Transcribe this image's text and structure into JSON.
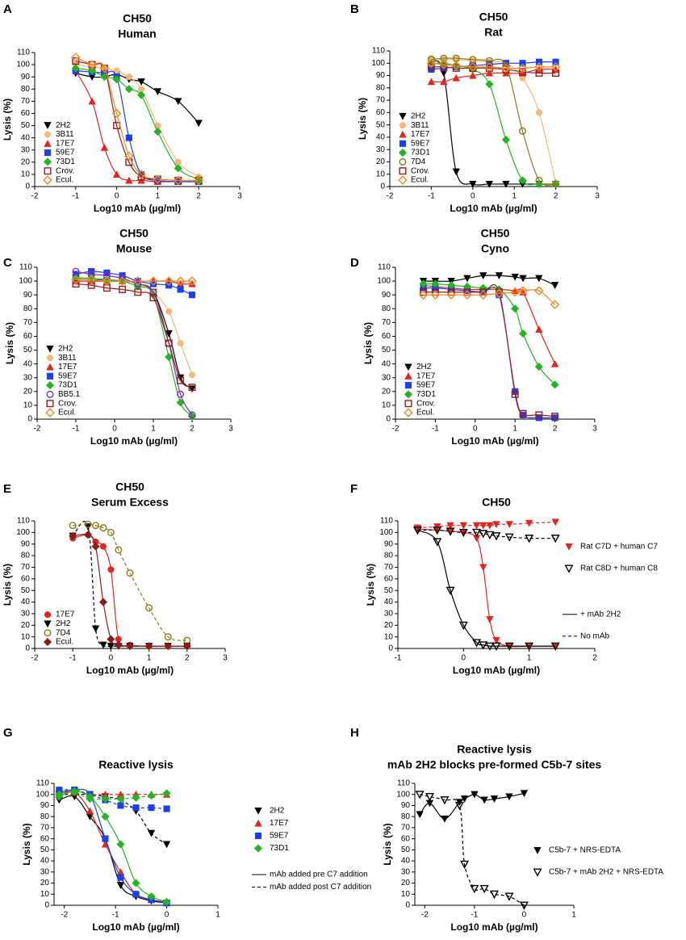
{
  "chart_data": [
    {
      "panel": "A",
      "type": "scatter",
      "title": "CH50",
      "subtitle": "Human",
      "x_label": "Log10 mAb (µg/ml)",
      "y_label": "Lysis (%)",
      "x": [
        -1,
        -0.6,
        -0.3,
        0,
        0.3,
        0.6,
        1,
        1.5,
        2
      ],
      "series": [
        {
          "name": "2H2",
          "color": "#000000",
          "marker": "triangle-down",
          "values": [
            93,
            90,
            90,
            92,
            88,
            86,
            78,
            70,
            52
          ]
        },
        {
          "name": "3B11",
          "color": "#f5b87a",
          "marker": "circle",
          "values": [
            100,
            98,
            97,
            95,
            90,
            80,
            50,
            20,
            8
          ]
        },
        {
          "name": "17E7",
          "color": "#e8231f",
          "marker": "triangle-up",
          "values": [
            95,
            70,
            32,
            10,
            5,
            5,
            4,
            4,
            4
          ]
        },
        {
          "name": "59E7",
          "color": "#1a3ff0",
          "marker": "square",
          "values": [
            95,
            94,
            93,
            90,
            40,
            10,
            5,
            4,
            4
          ]
        },
        {
          "name": "73D1",
          "color": "#22b522",
          "marker": "diamond",
          "values": [
            97,
            95,
            90,
            88,
            80,
            75,
            45,
            15,
            6
          ]
        },
        {
          "name": "Crov.",
          "color": "#9b1b1b",
          "marker": "square-open",
          "values": [
            103,
            100,
            97,
            50,
            20,
            8,
            6,
            5,
            5
          ]
        },
        {
          "name": "Ecul.",
          "color": "#f08a24",
          "marker": "diamond-open",
          "values": [
            106,
            100,
            97,
            60,
            25,
            10,
            6,
            5,
            5
          ]
        }
      ],
      "xlim": [
        -2,
        3
      ],
      "xticks": [
        -2,
        -1,
        0,
        1,
        2,
        3
      ],
      "ylim": [
        0,
        110
      ],
      "yticks": [
        0,
        10,
        20,
        30,
        40,
        50,
        60,
        70,
        80,
        90,
        100,
        110
      ],
      "legend": "lower-left"
    },
    {
      "panel": "B",
      "type": "scatter",
      "title": "CH50",
      "subtitle": "Rat",
      "x_label": "Log10 mAb (µg/ml)",
      "y_label": "Lysis (%)",
      "x": [
        -1,
        -0.7,
        -0.4,
        0,
        0.4,
        0.8,
        1.2,
        1.6,
        2
      ],
      "series": [
        {
          "name": "2H2",
          "color": "#000000",
          "marker": "triangle-down",
          "values": [
            102,
            92,
            12,
            2,
            2,
            2,
            2,
            2,
            2
          ]
        },
        {
          "name": "3B11",
          "color": "#f5b87a",
          "marker": "circle",
          "values": [
            104,
            103,
            103,
            102,
            101,
            100,
            88,
            60,
            3
          ]
        },
        {
          "name": "17E7",
          "color": "#e8231f",
          "marker": "triangle-up",
          "values": [
            85,
            85,
            88,
            90,
            92,
            92,
            92,
            95,
            95
          ]
        },
        {
          "name": "59E7",
          "color": "#1a3ff0",
          "marker": "square",
          "values": [
            95,
            96,
            97,
            98,
            99,
            100,
            100,
            101,
            101
          ]
        },
        {
          "name": "73D1",
          "color": "#22b522",
          "marker": "diamond",
          "values": [
            100,
            100,
            98,
            95,
            83,
            38,
            5,
            2,
            2
          ]
        },
        {
          "name": "7D4",
          "color": "#8c7a16",
          "marker": "circle-open",
          "values": [
            103,
            104,
            104,
            103,
            102,
            98,
            45,
            5,
            2
          ]
        },
        {
          "name": "Crov.",
          "color": "#9b1b1b",
          "marker": "square-open",
          "values": [
            97,
            97,
            96,
            96,
            96,
            95,
            93,
            92,
            92
          ]
        },
        {
          "name": "Ecul.",
          "color": "#f08a24",
          "marker": "diamond-open",
          "values": [
            100,
            99,
            98,
            97,
            97,
            96,
            96,
            97,
            97
          ]
        }
      ],
      "xlim": [
        -2,
        3
      ],
      "xticks": [
        -2,
        -1,
        0,
        1,
        2,
        3
      ],
      "ylim": [
        0,
        110
      ],
      "yticks": [
        0,
        10,
        20,
        30,
        40,
        50,
        60,
        70,
        80,
        90,
        100,
        110
      ],
      "legend": "lower-left"
    },
    {
      "panel": "C",
      "type": "scatter",
      "title": "CH50",
      "subtitle": "Mouse",
      "x_label": "Log10 mAb (µg/ml)",
      "y_label": "Lysis (%)",
      "x": [
        -1,
        -0.6,
        -0.2,
        0.2,
        0.6,
        1,
        1.4,
        1.7,
        2
      ],
      "series": [
        {
          "name": "2H2",
          "color": "#000000",
          "marker": "triangle-down",
          "values": [
            102,
            102,
            100,
            100,
            98,
            92,
            62,
            30,
            22
          ]
        },
        {
          "name": "3B11",
          "color": "#f5b87a",
          "marker": "circle",
          "values": [
            103,
            102,
            101,
            100,
            98,
            92,
            78,
            55,
            32
          ]
        },
        {
          "name": "17E7",
          "color": "#e8231f",
          "marker": "triangle-up",
          "values": [
            100,
            100,
            100,
            100,
            100,
            100,
            100,
            98,
            98
          ]
        },
        {
          "name": "59E7",
          "color": "#1a3ff0",
          "marker": "square",
          "values": [
            105,
            107,
            106,
            104,
            100,
            98,
            97,
            94,
            90
          ]
        },
        {
          "name": "73D1",
          "color": "#22b522",
          "marker": "diamond",
          "values": [
            102,
            102,
            101,
            100,
            96,
            90,
            45,
            12,
            2
          ]
        },
        {
          "name": "BB5.1",
          "color": "#7a2fb5",
          "marker": "circle-open",
          "values": [
            107,
            105,
            104,
            102,
            98,
            92,
            55,
            18,
            3
          ]
        },
        {
          "name": "Crov.",
          "color": "#9b1b1b",
          "marker": "square-open",
          "values": [
            98,
            97,
            95,
            94,
            92,
            88,
            55,
            28,
            23
          ]
        },
        {
          "name": "Ecul.",
          "color": "#f08a24",
          "marker": "diamond-open",
          "values": [
            101,
            101,
            100,
            100,
            100,
            100,
            100,
            100,
            100
          ]
        }
      ],
      "xlim": [
        -2,
        3
      ],
      "xticks": [
        -2,
        -1,
        0,
        1,
        2,
        3
      ],
      "ylim": [
        0,
        110
      ],
      "yticks": [
        0,
        10,
        20,
        30,
        40,
        50,
        60,
        70,
        80,
        90,
        100,
        110
      ],
      "legend": "lower-left"
    },
    {
      "panel": "D",
      "type": "scatter",
      "title": "CH50",
      "subtitle": "Cyno",
      "x_label": "Log10 mAb (µg/ml)",
      "y_label": "Lysis (%)",
      "x": [
        -1.3,
        -1,
        -0.6,
        -0.2,
        0.2,
        0.6,
        1,
        1.2,
        1.6,
        2
      ],
      "series": [
        {
          "name": "2H2",
          "color": "#000000",
          "marker": "triangle-down",
          "values": [
            100,
            100,
            100,
            102,
            104,
            104,
            103,
            102,
            102,
            97
          ]
        },
        {
          "name": "17E7",
          "color": "#e8231f",
          "marker": "triangle-up",
          "values": [
            97,
            96,
            95,
            94,
            94,
            94,
            93,
            92,
            65,
            40
          ]
        },
        {
          "name": "59E7",
          "color": "#1a3ff0",
          "marker": "square",
          "values": [
            95,
            95,
            94,
            93,
            92,
            90,
            20,
            3,
            1,
            1
          ]
        },
        {
          "name": "73D1",
          "color": "#22b522",
          "marker": "diamond",
          "values": [
            98,
            98,
            97,
            96,
            95,
            94,
            80,
            62,
            38,
            25
          ]
        },
        {
          "name": "Crov.",
          "color": "#9b1b1b",
          "marker": "square-open",
          "values": [
            92,
            92,
            92,
            92,
            92,
            92,
            18,
            4,
            3,
            2
          ]
        },
        {
          "name": "Ecul.",
          "color": "#f08a24",
          "marker": "diamond-open",
          "values": [
            90,
            90,
            90,
            90,
            90,
            91,
            92,
            93,
            93,
            83
          ]
        }
      ],
      "xlim": [
        -2,
        3
      ],
      "xticks": [
        -2,
        -1,
        0,
        1,
        2,
        3
      ],
      "ylim": [
        0,
        110
      ],
      "yticks": [
        0,
        10,
        20,
        30,
        40,
        50,
        60,
        70,
        80,
        90,
        100,
        110
      ],
      "legend": "lower-left"
    },
    {
      "panel": "E",
      "type": "scatter",
      "title": "CH50",
      "subtitle": "Serum Excess",
      "x_label": "Log10 mAb (µg/ml)",
      "y_label": "Lysis (%)",
      "x": [
        -1,
        -0.6,
        -0.4,
        -0.2,
        0,
        0.2,
        0.5,
        1,
        1.5,
        2
      ],
      "series": [
        {
          "name": "17E7",
          "color": "#e8231f",
          "marker": "circle",
          "values": [
            95,
            98,
            92,
            88,
            68,
            8,
            3,
            2,
            2,
            2
          ]
        },
        {
          "name": "2H2",
          "color": "#000000",
          "marker": "triangle-down",
          "dash": true,
          "values": [
            97,
            105,
            17,
            3,
            2,
            2,
            2,
            2,
            2,
            2
          ]
        },
        {
          "name": "7D4",
          "color": "#8c7a16",
          "marker": "circle-open",
          "dash": true,
          "values": [
            106,
            107,
            106,
            104,
            100,
            85,
            65,
            35,
            10,
            7
          ]
        },
        {
          "name": "Ecul.",
          "color": "#8b1a1a",
          "marker": "diamond",
          "values": [
            97,
            98,
            88,
            40,
            8,
            3,
            2,
            2,
            2,
            2
          ]
        }
      ],
      "xlim": [
        -2,
        3
      ],
      "xticks": [
        -2,
        -1,
        0,
        1,
        2,
        3
      ],
      "ylim": [
        0,
        110
      ],
      "yticks": [
        0,
        10,
        20,
        30,
        40,
        50,
        60,
        70,
        80,
        90,
        100,
        110
      ],
      "legend": "lower-left"
    },
    {
      "panel": "F",
      "type": "scatter",
      "title": "CH50",
      "x_label": "Log10 mAb (µg/ml)",
      "y_label": "Lysis (%)",
      "x": [
        -0.7,
        -0.4,
        -0.2,
        0,
        0.2,
        0.3,
        0.4,
        0.5,
        0.7,
        1,
        1.4
      ],
      "series": [
        {
          "name": "Rat C7D + human C7",
          "color": "#e8231f",
          "marker": "triangle-down",
          "values": [
            103,
            102,
            101,
            100,
            95,
            70,
            25,
            7,
            2,
            2,
            2
          ],
          "values_dashed": [
            104,
            105,
            106,
            106,
            106,
            106,
            106,
            107,
            107,
            108,
            109
          ]
        },
        {
          "name": "Rat C8D + human C8",
          "color": "#000000",
          "marker": "triangle-down-open",
          "values": [
            102,
            92,
            50,
            20,
            5,
            3,
            2,
            2,
            2,
            2,
            2
          ],
          "values_dashed": [
            102,
            102,
            101,
            100,
            100,
            99,
            98,
            97,
            96,
            95,
            95
          ]
        }
      ],
      "line_styles": [
        "+ mAb 2H2",
        "No mAb"
      ],
      "xlim": [
        -1,
        2
      ],
      "xticks": [
        -1,
        0,
        1,
        2
      ],
      "ylim": [
        0,
        110
      ],
      "yticks": [
        0,
        10,
        20,
        30,
        40,
        50,
        60,
        70,
        80,
        90,
        100,
        110
      ],
      "legend": "right"
    },
    {
      "panel": "G",
      "type": "scatter",
      "title": "Reactive lysis",
      "x_label": "Log10 mAb (µg/ml)",
      "y_label": "Lysis (%)",
      "x": [
        -2.1,
        -1.8,
        -1.5,
        -1.2,
        -0.9,
        -0.6,
        -0.3,
        0
      ],
      "series": [
        {
          "name": "2H2",
          "color": "#000000",
          "marker": "triangle-down",
          "values": [
            95,
            98,
            80,
            60,
            18,
            8,
            4,
            2
          ],
          "values_dashed": [
            100,
            100,
            100,
            98,
            95,
            85,
            65,
            55
          ]
        },
        {
          "name": "17E7",
          "color": "#e8231f",
          "marker": "triangle-up",
          "values": [
            100,
            102,
            85,
            55,
            30,
            10,
            5,
            3
          ],
          "values_dashed": [
            102,
            103,
            100,
            100,
            100,
            100,
            100,
            100
          ]
        },
        {
          "name": "59E7",
          "color": "#1a3ff0",
          "marker": "square",
          "values": [
            102,
            104,
            100,
            60,
            25,
            10,
            5,
            2
          ],
          "values_dashed": [
            104,
            104,
            100,
            95,
            90,
            88,
            88,
            87
          ]
        },
        {
          "name": "73D1",
          "color": "#22b522",
          "marker": "diamond",
          "values": [
            98,
            103,
            98,
            80,
            55,
            20,
            8,
            3
          ],
          "values_dashed": [
            100,
            102,
            96,
            96,
            96,
            97,
            99,
            101
          ]
        }
      ],
      "line_styles": [
        "mAb added pre C7 addition",
        "mAb added post C7 addition"
      ],
      "xlim": [
        -2.2,
        1
      ],
      "xticks": [
        -2,
        -1,
        0,
        1
      ],
      "ylim": [
        0,
        110
      ],
      "yticks": [
        0,
        10,
        20,
        30,
        40,
        50,
        60,
        70,
        80,
        90,
        100,
        110
      ],
      "legend": "right"
    },
    {
      "panel": "H",
      "type": "scatter",
      "title": "Reactive lysis",
      "subtitle": "mAb 2H2 blocks pre-formed C5b-7 sites",
      "x_label": "Log10 mAb (µg/ml)",
      "y_label": "Lysis (%)",
      "x": [
        -2.1,
        -1.9,
        -1.6,
        -1.3,
        -1.2,
        -1,
        -0.8,
        -0.6,
        -0.3,
        0
      ],
      "series": [
        {
          "name": "C5b-7 + NRS-EDTA",
          "color": "#000000",
          "marker": "triangle-down",
          "values": [
            82,
            92,
            78,
            93,
            96,
            100,
            95,
            96,
            98,
            101
          ]
        },
        {
          "name": "C5b-7 + mAb 2H2 + NRS-EDTA",
          "color": "#000000",
          "marker": "triangle-down-open",
          "dash": true,
          "values": [
            100,
            98,
            95,
            90,
            37,
            15,
            15,
            10,
            8,
            0
          ]
        }
      ],
      "xlim": [
        -2.2,
        1
      ],
      "xticks": [
        -2,
        -1,
        0,
        1
      ],
      "ylim": [
        0,
        110
      ],
      "yticks": [
        0,
        10,
        20,
        30,
        40,
        50,
        60,
        70,
        80,
        90,
        100,
        110
      ],
      "legend": "right"
    }
  ]
}
